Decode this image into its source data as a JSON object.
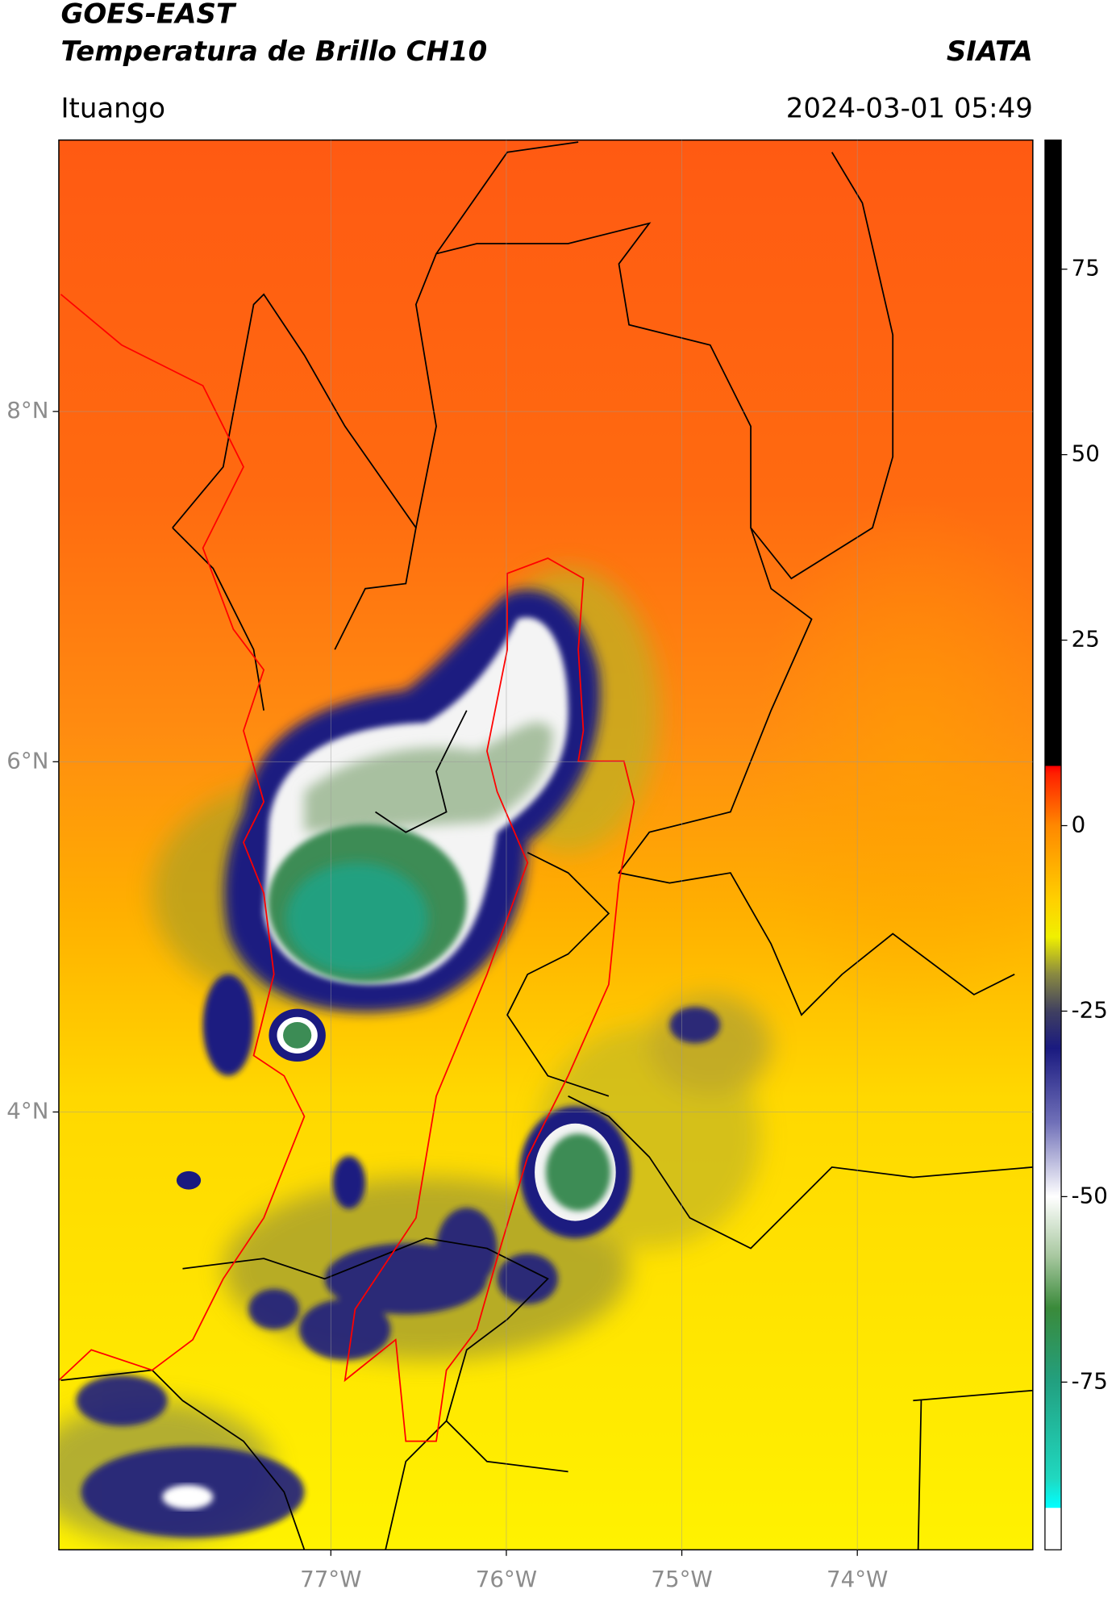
{
  "header": {
    "title_line1": "GOES-EAST",
    "title_line2": "Temperatura de Brillo CH10",
    "source": "SIATA",
    "location": "Ituango",
    "timestamp": "2024-03-01 05:49"
  },
  "map": {
    "xlim": [
      -78.55,
      -73.0
    ],
    "ylim": [
      1.5,
      9.55
    ],
    "xticks": [
      {
        "value": -77,
        "label": "77°W"
      },
      {
        "value": -76,
        "label": "76°W"
      },
      {
        "value": -75,
        "label": "75°W"
      },
      {
        "value": -74,
        "label": "74°W"
      }
    ],
    "yticks": [
      {
        "value": 8,
        "label": "8°N"
      },
      {
        "value": 6,
        "label": "6°N"
      },
      {
        "value": 4,
        "label": "4°N"
      }
    ],
    "grid": true
  },
  "colorbar": {
    "lim": [
      -97.6,
      92.4
    ],
    "ticks": [
      75,
      50,
      25,
      0,
      -25,
      -50,
      -75
    ],
    "colormap": [
      {
        "value": -97.6,
        "color": "#ffffff"
      },
      {
        "value": -92,
        "color": "#ffffff"
      },
      {
        "value": -91.9,
        "color": "#00ffff"
      },
      {
        "value": -88,
        "color": "#20d8c0"
      },
      {
        "value": -75,
        "color": "#22a080"
      },
      {
        "value": -65,
        "color": "#3a8a3a"
      },
      {
        "value": -58,
        "color": "#a8c8a0"
      },
      {
        "value": -50,
        "color": "#ffffff"
      },
      {
        "value": -40,
        "color": "#7070b8"
      },
      {
        "value": -30,
        "color": "#1a1a80"
      },
      {
        "value": -25,
        "color": "#404060"
      },
      {
        "value": -20,
        "color": "#8a8a40"
      },
      {
        "value": -15,
        "color": "#f0f000"
      },
      {
        "value": -10,
        "color": "#ffd000"
      },
      {
        "value": 0,
        "color": "#ff8800"
      },
      {
        "value": 7,
        "color": "#ff2000"
      },
      {
        "value": 8,
        "color": "#ff0000"
      },
      {
        "value": 8.1,
        "color": "#000000"
      },
      {
        "value": 92.4,
        "color": "#000000"
      }
    ]
  }
}
